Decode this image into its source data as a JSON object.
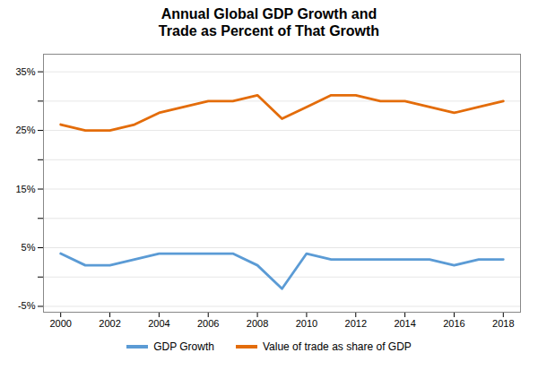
{
  "chart_data": {
    "type": "line",
    "title": "Annual Global GDP Growth and\nTrade as Percent of That Growth",
    "x": [
      2000,
      2001,
      2002,
      2003,
      2004,
      2005,
      2006,
      2007,
      2008,
      2009,
      2010,
      2011,
      2012,
      2013,
      2014,
      2015,
      2016,
      2017,
      2018
    ],
    "series": [
      {
        "name": "GDP Growth",
        "color": "#5b9bd5",
        "values": [
          4,
          2,
          2,
          3,
          4,
          4,
          4,
          4,
          2,
          -2,
          4,
          3,
          3,
          3,
          3,
          3,
          2,
          3,
          3
        ]
      },
      {
        "name": "Value of trade as share of GDP",
        "color": "#e36c0a",
        "values": [
          26,
          25,
          25,
          26,
          28,
          29,
          30,
          30,
          31,
          27,
          29,
          31,
          31,
          30,
          30,
          29,
          28,
          29,
          30
        ]
      }
    ],
    "xlim": [
      1999.3,
      2018.7
    ],
    "xticks": [
      2000,
      2002,
      2004,
      2006,
      2008,
      2010,
      2012,
      2014,
      2016,
      2018
    ],
    "ylim": [
      -6,
      38
    ],
    "yticks": [
      {
        "value": -5,
        "label": "-5%"
      },
      {
        "value": 0,
        "label": null
      },
      {
        "value": 5,
        "label": "5%"
      },
      {
        "value": 10,
        "label": null
      },
      {
        "value": 15,
        "label": "15%"
      },
      {
        "value": 20,
        "label": null
      },
      {
        "value": 25,
        "label": "25%"
      },
      {
        "value": 30,
        "label": null
      },
      {
        "value": 35,
        "label": "35%"
      }
    ],
    "grid": true,
    "legend": "bottom"
  }
}
